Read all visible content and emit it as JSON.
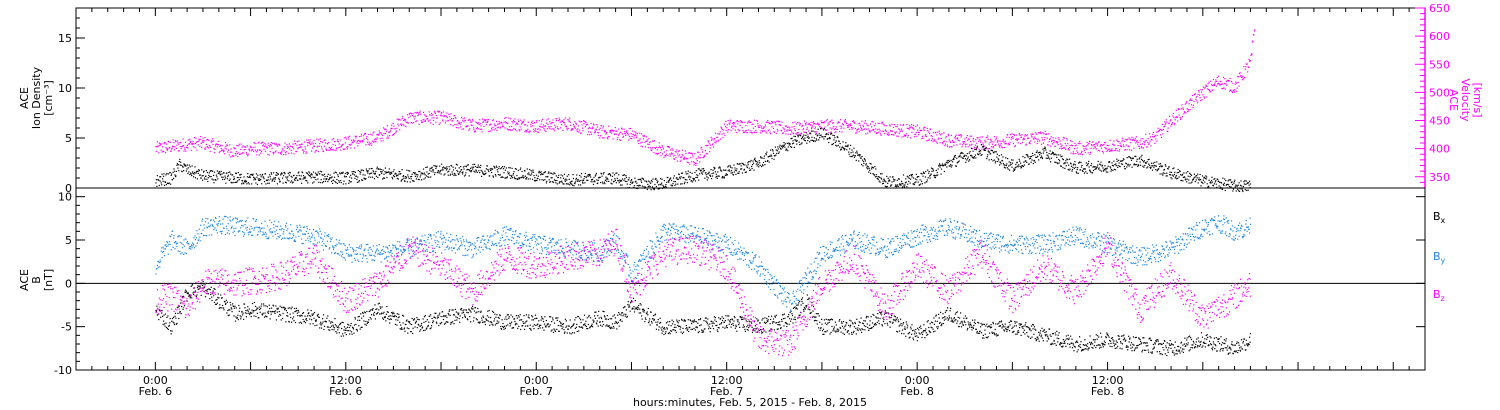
{
  "chart_data": [
    {
      "type": "scatter",
      "panel": "top",
      "ylabel_left": [
        "ACE",
        "Ion Density",
        "[cm⁻³]"
      ],
      "ylabel_right": [
        "ACE",
        "Velocity",
        "[km/s]"
      ],
      "ylim_left": [
        0,
        18
      ],
      "yticks_left": [
        0,
        5,
        10,
        15
      ],
      "ylim_right": [
        330,
        650
      ],
      "yticks_right": [
        350,
        400,
        450,
        500,
        550,
        600,
        650
      ],
      "colors": {
        "density": "#000000",
        "velocity": "#ff00ff"
      },
      "series": [
        {
          "name": "Ion Density",
          "axis": "left",
          "x": [
            0.0,
            2.0,
            3.0,
            4.0,
            6.0,
            10.0,
            12.0,
            16.0,
            20.0,
            24.0,
            28.0,
            32.0,
            36.0,
            40.0,
            44.0,
            48.0,
            52.0,
            54.0,
            58.0,
            60.0,
            62.0,
            64.0,
            68.0,
            72.0,
            76.0,
            80.0,
            84.0,
            88.0,
            92.0,
            96.0,
            98.0,
            100.0,
            104.0,
            108.0,
            112.0,
            116.0,
            120.0,
            124.0,
            128.0,
            132.0,
            136.0,
            138.0
          ],
          "y": [
            0.7,
            1.0,
            2.3,
            1.8,
            1.2,
            1.0,
            0.9,
            1.0,
            1.1,
            1.0,
            1.5,
            1.2,
            1.8,
            1.8,
            1.6,
            1.2,
            0.8,
            0.9,
            1.0,
            0.5,
            0.4,
            0.4,
            1.3,
            1.6,
            2.5,
            4.5,
            5.5,
            3.5,
            0.6,
            0.8,
            1.5,
            2.5,
            3.8,
            2.2,
            3.5,
            2.0,
            2.2,
            2.8,
            1.5,
            0.7,
            0.2,
            0.2
          ]
        },
        {
          "name": "Velocity",
          "axis": "right",
          "x": [
            0.0,
            4.0,
            6.0,
            10.0,
            12.0,
            16.0,
            20.0,
            24.0,
            28.0,
            32.0,
            36.0,
            40.0,
            44.0,
            48.0,
            52.0,
            56.0,
            60.0,
            64.0,
            68.0,
            72.0,
            76.0,
            80.0,
            84.0,
            88.0,
            92.0,
            96.0,
            100.0,
            104.0,
            108.0,
            112.0,
            116.0,
            120.0,
            124.0,
            126.0,
            128.0,
            132.0,
            134.0,
            136.0,
            138.0,
            138.5
          ],
          "y": [
            400,
            408,
            410,
            395,
            400,
            400,
            405,
            410,
            420,
            455,
            455,
            440,
            445,
            440,
            445,
            430,
            425,
            395,
            380,
            440,
            440,
            435,
            440,
            440,
            435,
            430,
            415,
            410,
            415,
            420,
            400,
            405,
            410,
            420,
            450,
            500,
            520,
            510,
            555,
            620
          ]
        }
      ]
    },
    {
      "type": "scatter",
      "panel": "bottom",
      "ylabel_left": [
        "ACE",
        "B",
        "[nT]"
      ],
      "ylim": [
        -10,
        11
      ],
      "yticks": [
        -10,
        -5,
        0,
        5,
        10
      ],
      "colors": {
        "Bx": "#000000",
        "By": "#1e88e5",
        "Bz": "#ff00ff"
      },
      "legend": [
        {
          "label": "B",
          "sub": "x",
          "color": "#000000"
        },
        {
          "label": "B",
          "sub": "y",
          "color": "#1e88e5"
        },
        {
          "label": "B",
          "sub": "z",
          "color": "#ff00ff"
        }
      ],
      "series": [
        {
          "name": "Bx",
          "x": [
            0.0,
            2.0,
            4.0,
            6.0,
            8.0,
            10.0,
            12.0,
            16.0,
            20.0,
            24.0,
            28.0,
            32.0,
            36.0,
            40.0,
            44.0,
            48.0,
            52.0,
            56.0,
            58.0,
            60.0,
            64.0,
            68.0,
            72.0,
            76.0,
            80.0,
            82.0,
            84.0,
            88.0,
            92.0,
            96.0,
            100.0,
            104.0,
            108.0,
            112.0,
            116.0,
            120.0,
            124.0,
            128.0,
            132.0,
            136.0,
            138.0
          ],
          "y": [
            -3.0,
            -5.0,
            -1.0,
            -0.5,
            -2.0,
            -3.5,
            -3.0,
            -3.5,
            -4.0,
            -5.5,
            -3.0,
            -5.0,
            -4.0,
            -3.5,
            -4.5,
            -4.5,
            -5.0,
            -4.0,
            -4.5,
            -2.5,
            -5.0,
            -5.0,
            -4.5,
            -5.0,
            -4.0,
            -2.0,
            -5.0,
            -5.0,
            -4.0,
            -6.0,
            -3.5,
            -5.5,
            -5.0,
            -6.0,
            -7.0,
            -6.5,
            -7.0,
            -7.5,
            -6.5,
            -7.5,
            -6.5
          ]
        },
        {
          "name": "By",
          "x": [
            0.0,
            2.0,
            4.0,
            6.0,
            8.0,
            10.0,
            12.0,
            16.0,
            20.0,
            24.0,
            28.0,
            32.0,
            36.0,
            40.0,
            44.0,
            48.0,
            52.0,
            56.0,
            58.0,
            60.0,
            64.0,
            68.0,
            72.0,
            76.0,
            80.0,
            84.0,
            88.0,
            92.0,
            96.0,
            100.0,
            104.0,
            108.0,
            112.0,
            116.0,
            120.0,
            124.0,
            128.0,
            132.0,
            134.0,
            136.0,
            138.0
          ],
          "y": [
            2.0,
            5.0,
            4.0,
            6.5,
            6.8,
            6.5,
            6.5,
            6.0,
            5.5,
            3.5,
            3.5,
            4.0,
            5.0,
            4.0,
            5.5,
            4.5,
            4.0,
            3.5,
            5.0,
            1.0,
            6.0,
            5.5,
            4.5,
            2.0,
            -2.5,
            3.5,
            5.0,
            4.0,
            5.5,
            6.5,
            5.0,
            4.5,
            4.5,
            5.5,
            4.5,
            3.0,
            4.0,
            6.5,
            7.0,
            6.0,
            6.5
          ]
        },
        {
          "name": "Bz",
          "x": [
            0.0,
            2.0,
            4.0,
            6.0,
            8.0,
            10.0,
            12.0,
            14.0,
            16.0,
            20.0,
            24.0,
            28.0,
            32.0,
            36.0,
            40.0,
            44.0,
            48.0,
            52.0,
            56.0,
            58.0,
            60.0,
            64.0,
            68.0,
            72.0,
            76.0,
            80.0,
            84.0,
            88.0,
            92.0,
            96.0,
            100.0,
            104.0,
            108.0,
            112.0,
            116.0,
            120.0,
            124.0,
            128.0,
            132.0,
            136.0,
            138.0
          ],
          "y": [
            -2.0,
            -1.5,
            -3.0,
            0.0,
            0.2,
            0.0,
            0.3,
            0.5,
            1.0,
            3.0,
            -2.0,
            0.0,
            4.0,
            2.0,
            -1.0,
            3.0,
            2.0,
            3.0,
            3.5,
            5.0,
            -1.0,
            3.5,
            4.0,
            2.0,
            -6.5,
            -7.0,
            0.0,
            3.0,
            -3.0,
            2.0,
            -1.0,
            3.5,
            -2.0,
            2.0,
            -1.0,
            4.5,
            -3.0,
            1.0,
            -4.0,
            -1.5,
            0.0
          ]
        }
      ]
    }
  ],
  "x_axis": {
    "range_hours": [
      -10,
      160
    ],
    "major_ticks": [
      {
        "hour": 0,
        "time": "0:00",
        "date": "Feb. 6"
      },
      {
        "hour": 24,
        "time": "12:00",
        "date": "Feb. 6"
      },
      {
        "hour": 48,
        "time": "0:00",
        "date": "Feb. 7"
      },
      {
        "hour": 72,
        "time": "12:00",
        "date": "Feb. 7"
      },
      {
        "hour": 96,
        "time": "0:00",
        "date": "Feb. 8"
      },
      {
        "hour": 120,
        "time": "12:00",
        "date": "Feb. 8"
      }
    ],
    "label": "hours:minutes, Feb.  5, 2015 - Feb.  8, 2015"
  }
}
